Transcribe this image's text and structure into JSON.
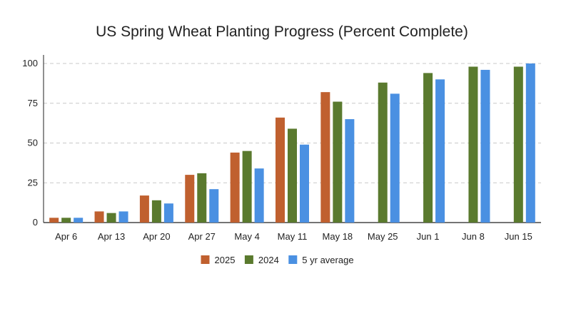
{
  "chart_data": {
    "type": "bar",
    "title": "US Spring Wheat Planting Progress (Percent Complete)",
    "xlabel": "",
    "ylabel": "",
    "categories": [
      "Apr 6",
      "Apr 13",
      "Apr 20",
      "Apr 27",
      "May 4",
      "May 11",
      "May 18",
      "May 25",
      "Jun 1",
      "Jun 8",
      "Jun 15"
    ],
    "series": [
      {
        "name": "2025",
        "color": "#c0602f",
        "values": [
          3,
          7,
          17,
          30,
          44,
          66,
          82,
          null,
          null,
          null,
          null
        ]
      },
      {
        "name": "2024",
        "color": "#5a7a2e",
        "values": [
          3,
          6,
          14,
          31,
          45,
          59,
          76,
          88,
          94,
          98,
          98
        ]
      },
      {
        "name": "5 yr average",
        "color": "#4a90e2",
        "values": [
          3,
          7,
          12,
          21,
          34,
          49,
          65,
          81,
          90,
          96,
          100
        ]
      }
    ],
    "ylim": [
      0,
      100
    ],
    "yticks": [
      0,
      25,
      50,
      75,
      100
    ],
    "grid": true,
    "legend_position": "bottom"
  }
}
